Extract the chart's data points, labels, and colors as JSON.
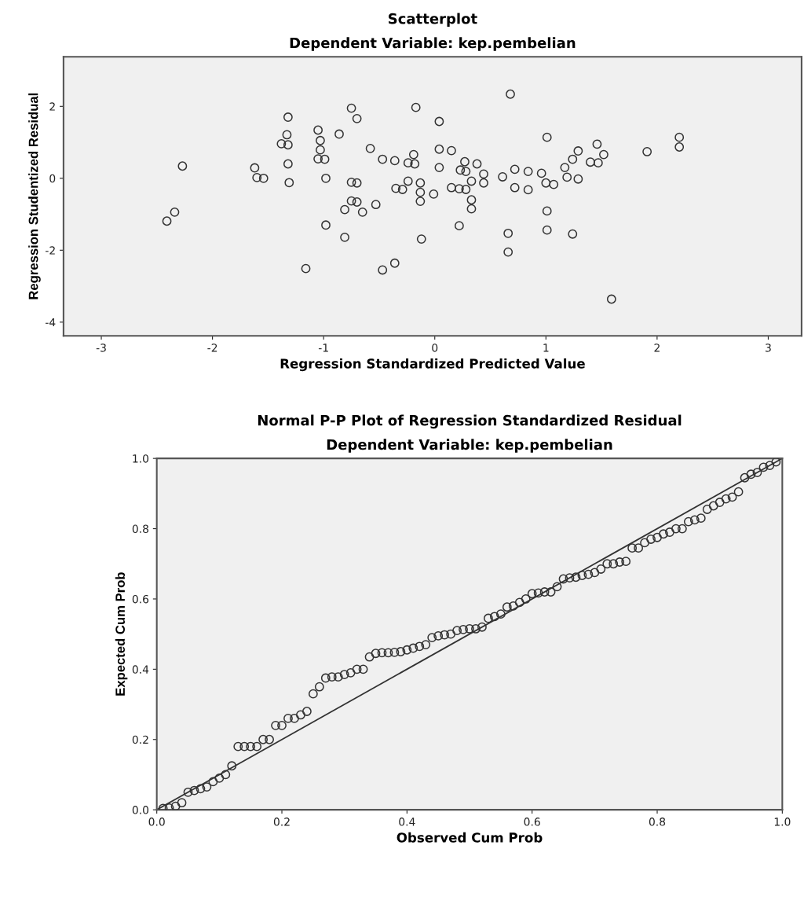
{
  "chart_data": [
    {
      "type": "scatter",
      "title": "Scatterplot",
      "subtitle": "Dependent Variable: kep.pembelian",
      "xlabel": "Regression Standardized Predicted Value",
      "ylabel": "Regression Studentized Residual",
      "marker": "circle",
      "xlim": [
        -3.34,
        3.3
      ],
      "ylim": [
        -4.38,
        3.38
      ],
      "xticks": [
        -3,
        -2,
        -1,
        0,
        1,
        2,
        3
      ],
      "yticks": [
        -4,
        -2,
        0,
        2
      ],
      "series": [
        {
          "color": "#333333",
          "x": [
            -2.27,
            -2.34,
            -2.41,
            -1.62,
            -1.6,
            -1.54,
            -1.32,
            -1.33,
            -1.38,
            -1.32,
            -1.32,
            -1.31,
            -1.05,
            -1.03,
            -1.03,
            -1.05,
            -0.99,
            -0.98,
            -0.98,
            -0.86,
            -0.75,
            -0.7,
            -0.58,
            -0.75,
            -0.7,
            -0.75,
            -0.7,
            -0.81,
            -0.65,
            -0.53,
            -0.81,
            -1.16,
            -0.47,
            -0.36,
            -0.47,
            -0.36,
            -0.17,
            0.04,
            0.68,
            1.01,
            2.2,
            2.2,
            1.91,
            1.46,
            1.29,
            1.52,
            1.24,
            1.4,
            1.47,
            1.17,
            1.19,
            1.29,
            1.0,
            1.07,
            0.96,
            0.84,
            0.72,
            0.72,
            0.84,
            0.61,
            0.44,
            0.44,
            0.33,
            0.27,
            0.38,
            0.23,
            0.28,
            0.04,
            0.15,
            0.04,
            -0.19,
            -0.24,
            -0.18,
            -0.24,
            -0.13,
            -0.35,
            -0.29,
            -0.13,
            -0.01,
            -0.13,
            0.15,
            0.22,
            0.28,
            0.33,
            0.33,
            1.01,
            0.22,
            0.66,
            1.01,
            1.24,
            0.66,
            -0.12,
            1.59
          ],
          "values": [
            0.34,
            -0.94,
            -1.19,
            0.29,
            0.02,
            0.0,
            1.7,
            1.21,
            0.96,
            0.93,
            0.4,
            -0.12,
            1.34,
            1.05,
            0.79,
            0.54,
            0.53,
            0.0,
            -1.3,
            1.23,
            1.95,
            1.66,
            0.83,
            -0.11,
            -0.13,
            -0.63,
            -0.66,
            -0.87,
            -0.94,
            -0.73,
            -1.64,
            -2.51,
            -2.55,
            -2.36,
            0.53,
            0.49,
            1.97,
            1.58,
            2.34,
            1.14,
            1.14,
            0.87,
            0.74,
            0.95,
            0.76,
            0.66,
            0.53,
            0.45,
            0.43,
            0.3,
            0.03,
            -0.02,
            -0.13,
            -0.17,
            0.14,
            0.19,
            0.25,
            -0.26,
            -0.32,
            0.04,
            0.12,
            -0.13,
            -0.08,
            0.46,
            0.4,
            0.23,
            0.19,
            0.81,
            0.77,
            0.3,
            0.66,
            0.43,
            0.4,
            -0.08,
            -0.13,
            -0.28,
            -0.31,
            -0.39,
            -0.44,
            -0.64,
            -0.26,
            -0.29,
            -0.31,
            -0.6,
            -0.85,
            -0.91,
            -1.32,
            -1.53,
            -1.44,
            -1.55,
            -2.05,
            -1.69,
            -3.36
          ]
        }
      ]
    },
    {
      "type": "scatter",
      "title": "Normal P-P Plot of Regression Standardized Residual",
      "subtitle": "Dependent Variable: kep.pembelian",
      "xlabel": "Observed Cum Prob",
      "ylabel": "Expected Cum Prob",
      "xlim": [
        0,
        1
      ],
      "ylim": [
        0,
        1
      ],
      "xticks": [
        {
          "value": 0,
          "label": "0.0"
        },
        {
          "value": 0.2,
          "label": "0.2"
        },
        {
          "value": 0.4,
          "label": "0.4"
        },
        {
          "value": 0.6,
          "label": "0.6"
        },
        {
          "value": 0.8,
          "label": "0.8"
        },
        {
          "value": 1,
          "label": "1.0"
        }
      ],
      "yticks": [
        {
          "value": 0,
          "label": "0.0"
        },
        {
          "value": 0.2,
          "label": "0.2"
        },
        {
          "value": 0.4,
          "label": "0.4"
        },
        {
          "value": 0.6,
          "label": "0.6"
        },
        {
          "value": 0.8,
          "label": "0.8"
        },
        {
          "value": 1,
          "label": "1.0"
        }
      ],
      "series": [
        {
          "color": "#333333",
          "marker": "circle",
          "x": [
            0.01,
            0.02,
            0.03,
            0.04,
            0.05,
            0.06,
            0.07,
            0.08,
            0.09,
            0.1,
            0.11,
            0.12,
            0.13,
            0.14,
            0.15,
            0.16,
            0.17,
            0.18,
            0.19,
            0.2,
            0.21,
            0.22,
            0.23,
            0.24,
            0.25,
            0.26,
            0.27,
            0.28,
            0.29,
            0.3,
            0.31,
            0.32,
            0.33,
            0.34,
            0.35,
            0.36,
            0.37,
            0.38,
            0.39,
            0.4,
            0.41,
            0.42,
            0.43,
            0.44,
            0.45,
            0.46,
            0.47,
            0.48,
            0.49,
            0.5,
            0.51,
            0.52,
            0.53,
            0.54,
            0.55,
            0.56,
            0.57,
            0.58,
            0.59,
            0.6,
            0.61,
            0.62,
            0.63,
            0.64,
            0.65,
            0.66,
            0.67,
            0.68,
            0.69,
            0.7,
            0.71,
            0.72,
            0.73,
            0.74,
            0.75,
            0.76,
            0.77,
            0.78,
            0.79,
            0.8,
            0.81,
            0.82,
            0.83,
            0.84,
            0.85,
            0.86,
            0.87,
            0.88,
            0.89,
            0.9,
            0.91,
            0.92,
            0.93,
            0.94,
            0.95,
            0.96,
            0.97,
            0.98,
            0.99
          ],
          "values": [
            0.004,
            0.005,
            0.01,
            0.02,
            0.05,
            0.055,
            0.06,
            0.065,
            0.08,
            0.09,
            0.1,
            0.125,
            0.18,
            0.18,
            0.18,
            0.18,
            0.2,
            0.2,
            0.24,
            0.24,
            0.26,
            0.26,
            0.27,
            0.28,
            0.33,
            0.35,
            0.375,
            0.378,
            0.378,
            0.385,
            0.39,
            0.4,
            0.4,
            0.435,
            0.445,
            0.447,
            0.447,
            0.448,
            0.45,
            0.455,
            0.46,
            0.465,
            0.47,
            0.49,
            0.495,
            0.498,
            0.5,
            0.51,
            0.513,
            0.515,
            0.515,
            0.52,
            0.545,
            0.55,
            0.557,
            0.577,
            0.58,
            0.59,
            0.6,
            0.615,
            0.617,
            0.62,
            0.62,
            0.635,
            0.657,
            0.66,
            0.662,
            0.667,
            0.67,
            0.675,
            0.685,
            0.7,
            0.7,
            0.705,
            0.707,
            0.745,
            0.745,
            0.76,
            0.77,
            0.775,
            0.785,
            0.79,
            0.8,
            0.8,
            0.82,
            0.825,
            0.83,
            0.855,
            0.865,
            0.875,
            0.885,
            0.89,
            0.905,
            0.945,
            0.955,
            0.96,
            0.975,
            0.98,
            0.99
          ]
        },
        {
          "type": "line",
          "color": "#333333",
          "marker": "none",
          "line_style": "solid",
          "x": [
            0,
            1
          ],
          "values": [
            0,
            1
          ]
        }
      ]
    }
  ]
}
